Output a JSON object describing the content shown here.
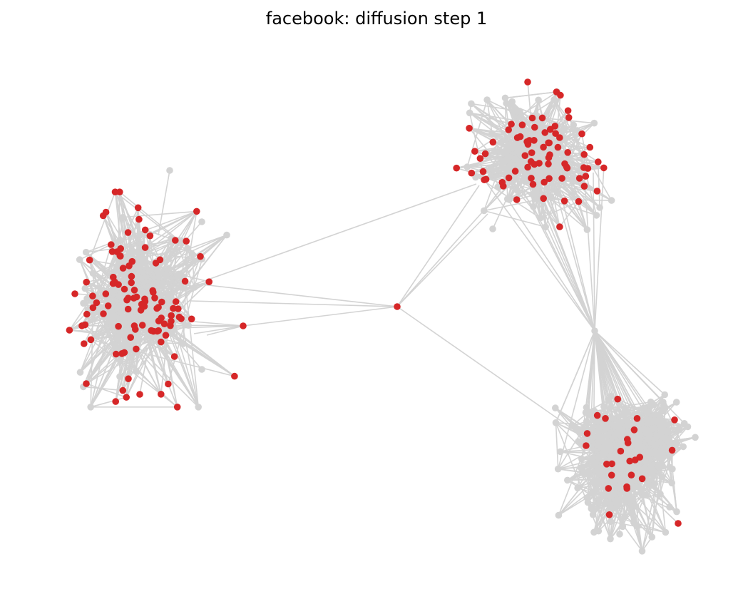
{
  "title": "facebook: diffusion step 1",
  "colors": {
    "edge": "#d3d3d3",
    "inactive_node": "#d3d3d3",
    "active_node": "#d62728",
    "background": "#ffffff"
  },
  "legend": null,
  "axes": "hidden"
}
